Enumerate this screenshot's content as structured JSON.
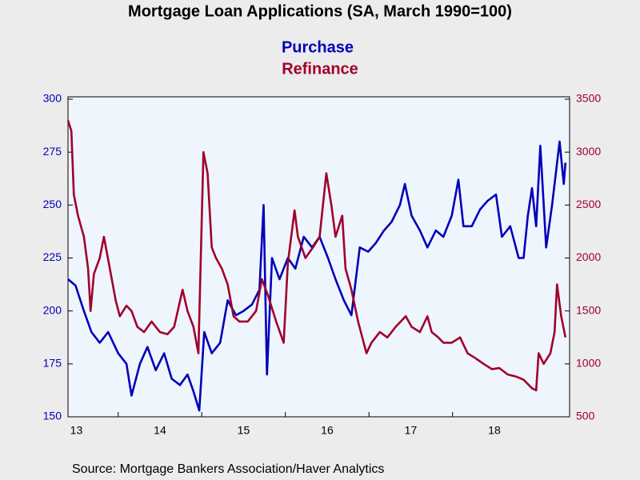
{
  "chart_data": {
    "type": "line",
    "title": "Mortgage Loan Applications (SA, March 1990=100)",
    "source": "Source:  Mortgage Bankers Association/Haver Analytics",
    "xlim": [
      2013.4,
      2019.4
    ],
    "xticks": [
      {
        "value": 2013,
        "label": "13"
      },
      {
        "value": 2014,
        "label": "14"
      },
      {
        "value": 2015,
        "label": "15"
      },
      {
        "value": 2016,
        "label": "16"
      },
      {
        "value": 2017,
        "label": "17"
      },
      {
        "value": 2018,
        "label": "18"
      }
    ],
    "ylim": [
      150,
      300
    ],
    "yticks": [
      150,
      175,
      200,
      225,
      250,
      275,
      300
    ],
    "y2lim": [
      500,
      3500
    ],
    "y2ticks": [
      500,
      1000,
      1500,
      2000,
      2500,
      3000,
      3500
    ],
    "grid": false,
    "series": [
      {
        "name": "Purchase",
        "color": "#0000b8",
        "axis": "y",
        "x": [
          2013.4,
          2013.49,
          2013.59,
          2013.68,
          2013.78,
          2013.88,
          2014.0,
          2014.1,
          2014.16,
          2014.26,
          2014.35,
          2014.45,
          2014.55,
          2014.64,
          2014.74,
          2014.83,
          2014.9,
          2014.97,
          2015.03,
          2015.12,
          2015.22,
          2015.31,
          2015.41,
          2015.5,
          2015.6,
          2015.69,
          2015.74,
          2015.78,
          2015.84,
          2015.93,
          2016.03,
          2016.12,
          2016.22,
          2016.32,
          2016.41,
          2016.51,
          2016.6,
          2016.7,
          2016.79,
          2016.89,
          2016.99,
          2017.08,
          2017.18,
          2017.27,
          2017.37,
          2017.43,
          2017.51,
          2017.61,
          2017.7,
          2017.8,
          2017.89,
          2017.99,
          2018.07,
          2018.13,
          2018.23,
          2018.33,
          2018.42,
          2018.52,
          2018.59,
          2018.69,
          2018.79,
          2018.85,
          2018.9,
          2018.95,
          2019.0,
          2019.05,
          2019.12,
          2019.19,
          2019.28,
          2019.33,
          2019.35
        ],
        "values": [
          215,
          212,
          200,
          190,
          185,
          190,
          180,
          175,
          160,
          175,
          183,
          172,
          180,
          168,
          165,
          170,
          162,
          153,
          190,
          180,
          185,
          205,
          198,
          200,
          203,
          210,
          250,
          170,
          225,
          215,
          225,
          220,
          235,
          230,
          235,
          225,
          215,
          205,
          198,
          230,
          228,
          232,
          238,
          242,
          250,
          260,
          245,
          238,
          230,
          238,
          235,
          245,
          262,
          240,
          240,
          248,
          252,
          255,
          235,
          240,
          225,
          225,
          245,
          258,
          240,
          278,
          230,
          250,
          280,
          260,
          270
        ]
      },
      {
        "name": "Refinance",
        "color": "#a0002a",
        "axis": "y2",
        "x": [
          2013.4,
          2013.44,
          2013.47,
          2013.52,
          2013.59,
          2013.64,
          2013.67,
          2013.71,
          2013.78,
          2013.83,
          2013.9,
          2013.97,
          2014.02,
          2014.1,
          2014.16,
          2014.23,
          2014.31,
          2014.4,
          2014.5,
          2014.59,
          2014.67,
          2014.77,
          2014.83,
          2014.9,
          2014.96,
          2015.02,
          2015.07,
          2015.12,
          2015.17,
          2015.24,
          2015.31,
          2015.38,
          2015.45,
          2015.55,
          2015.65,
          2015.72,
          2015.79,
          2015.89,
          2015.98,
          2016.03,
          2016.11,
          2016.15,
          2016.24,
          2016.33,
          2016.41,
          2016.49,
          2016.55,
          2016.6,
          2016.68,
          2016.72,
          2016.79,
          2016.87,
          2016.97,
          2017.03,
          2017.13,
          2017.22,
          2017.32,
          2017.44,
          2017.51,
          2017.61,
          2017.7,
          2017.75,
          2017.83,
          2017.89,
          2017.99,
          2018.09,
          2018.18,
          2018.28,
          2018.37,
          2018.47,
          2018.56,
          2018.66,
          2018.76,
          2018.85,
          2018.95,
          2019.0,
          2019.03,
          2019.09,
          2019.17,
          2019.22,
          2019.25,
          2019.3,
          2019.35
        ],
        "values": [
          3300,
          3200,
          2600,
          2400,
          2200,
          1900,
          1500,
          1850,
          2000,
          2200,
          1900,
          1600,
          1450,
          1550,
          1500,
          1350,
          1300,
          1400,
          1300,
          1280,
          1350,
          1700,
          1500,
          1350,
          1100,
          3000,
          2800,
          2100,
          2000,
          1900,
          1750,
          1450,
          1400,
          1400,
          1500,
          1800,
          1650,
          1400,
          1200,
          1950,
          2450,
          2200,
          2000,
          2100,
          2200,
          2800,
          2500,
          2200,
          2400,
          1900,
          1700,
          1400,
          1100,
          1200,
          1300,
          1250,
          1350,
          1450,
          1350,
          1300,
          1450,
          1300,
          1250,
          1200,
          1200,
          1250,
          1100,
          1050,
          1000,
          950,
          960,
          900,
          880,
          850,
          770,
          750,
          1100,
          1000,
          1100,
          1300,
          1750,
          1450,
          1250
        ]
      }
    ]
  }
}
